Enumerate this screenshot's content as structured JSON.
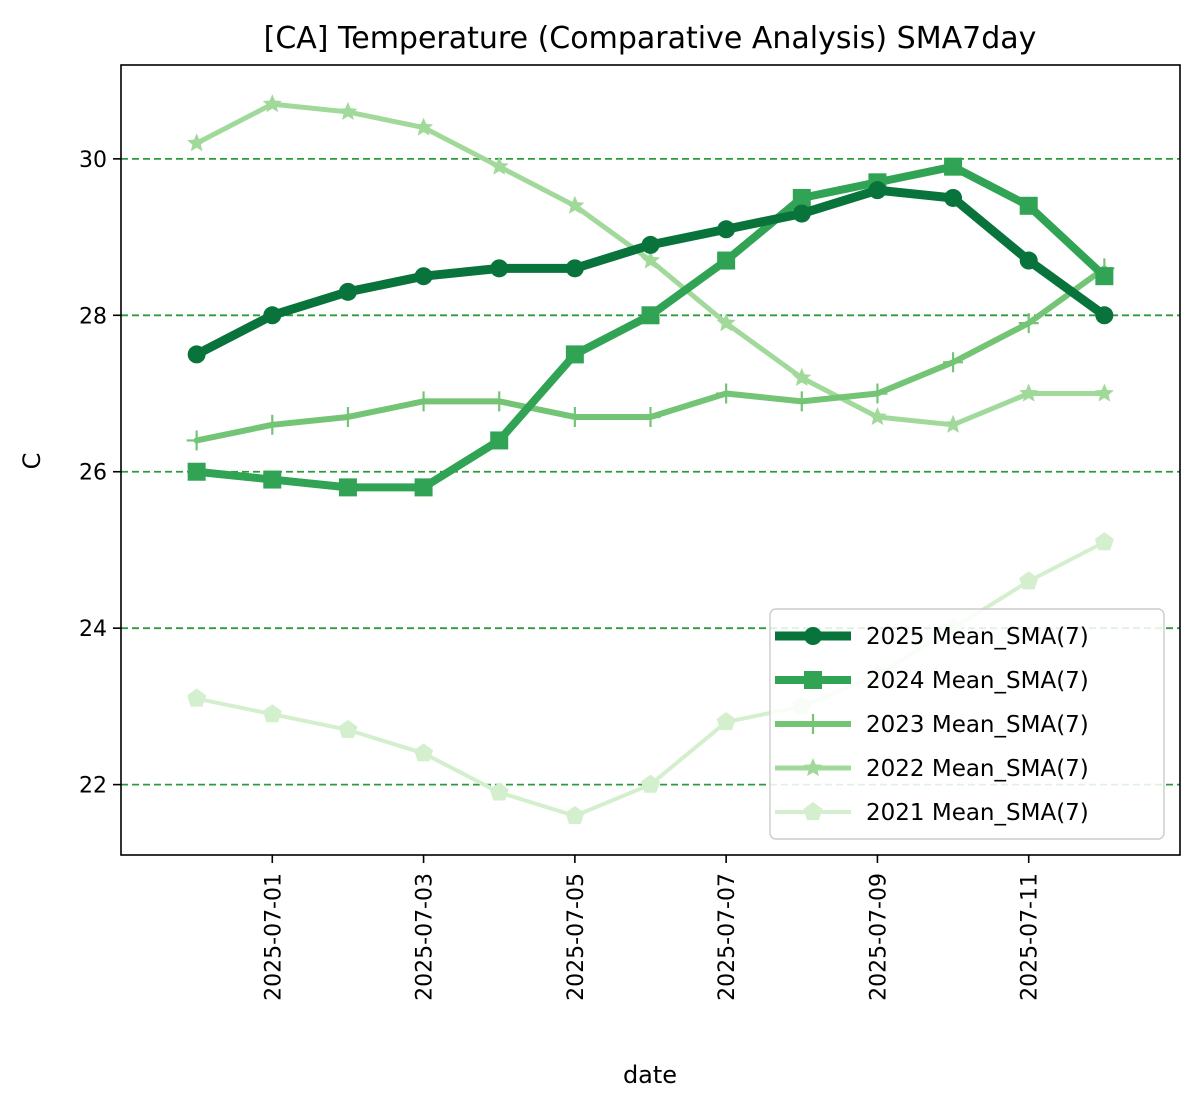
{
  "chart_data": {
    "type": "line",
    "title": "[CA] Temperature (Comparative Analysis) SMA7day",
    "xlabel": "date",
    "ylabel": "C",
    "x": [
      "2025-06-30",
      "2025-07-01",
      "2025-07-02",
      "2025-07-03",
      "2025-07-04",
      "2025-07-05",
      "2025-07-06",
      "2025-07-07",
      "2025-07-08",
      "2025-07-09",
      "2025-07-10",
      "2025-07-11",
      "2025-07-12"
    ],
    "x_ticks": [
      "2025-07-01",
      "2025-07-03",
      "2025-07-05",
      "2025-07-07",
      "2025-07-09",
      "2025-07-11"
    ],
    "xlim": [
      "2025-06-29",
      "2025-07-13"
    ],
    "ylim": [
      21.1,
      31.2
    ],
    "y_ticks": [
      22,
      24,
      26,
      28,
      30
    ],
    "y_tick_labels": [
      "22",
      "24",
      "26",
      "28",
      "30"
    ],
    "grid": "horizontal dashed",
    "grid_color": "#2e9a3e",
    "legend_position": "lower-right",
    "series": [
      {
        "name": "2025 Mean_SMA(7)",
        "color": "#08733a",
        "marker": "circle",
        "values": [
          27.5,
          28.0,
          28.3,
          28.5,
          28.6,
          28.6,
          28.9,
          29.1,
          29.3,
          29.6,
          29.5,
          28.7,
          28.0
        ]
      },
      {
        "name": "2024 Mean_SMA(7)",
        "color": "#31a354",
        "marker": "square",
        "values": [
          26.0,
          25.9,
          25.8,
          25.8,
          26.4,
          27.5,
          28.0,
          28.7,
          29.5,
          29.7,
          29.9,
          29.4,
          28.5
        ]
      },
      {
        "name": "2023 Mean_SMA(7)",
        "color": "#74c476",
        "marker": "plus",
        "values": [
          26.4,
          26.6,
          26.7,
          26.9,
          26.9,
          26.7,
          26.7,
          27.0,
          26.9,
          27.0,
          27.4,
          27.9,
          28.6
        ]
      },
      {
        "name": "2022 Mean_SMA(7)",
        "color": "#a1d99b",
        "marker": "star",
        "values": [
          30.2,
          30.7,
          30.6,
          30.4,
          29.9,
          29.4,
          28.7,
          27.9,
          27.2,
          26.7,
          26.6,
          27.0,
          27.0
        ]
      },
      {
        "name": "2021 Mean_SMA(7)",
        "color": "#d4efcd",
        "marker": "pentagon",
        "values": [
          23.1,
          22.9,
          22.7,
          22.4,
          21.9,
          21.6,
          22.0,
          22.8,
          23.0,
          23.4,
          24.0,
          24.6,
          25.1
        ]
      }
    ]
  }
}
